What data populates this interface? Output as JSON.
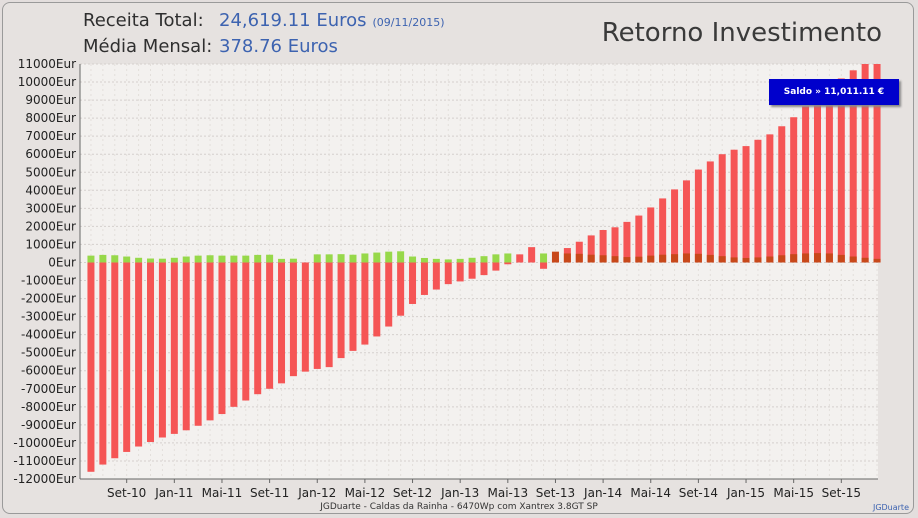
{
  "header": {
    "receita_label": "Receita Total:",
    "receita_value": "24,619.11 Euros",
    "receita_date": "(09/11/2015)",
    "media_label": "Média Mensal:",
    "media_value": "378.76 Euros",
    "title": "Retorno Investimento"
  },
  "saldo_label": "Saldo » 11,011.11 €",
  "footer": "JGDuarte  -  Caldas da Rainha  -  6470Wp com Xantrex 3.8GT SP",
  "credit": "JGDuarte",
  "colors": {
    "balance": "#f55555",
    "income": "#97d84a",
    "income_dark": "#c8481a"
  },
  "chart_data": {
    "type": "bar",
    "ylim": [
      -12000,
      11000
    ],
    "ytick_step": 1000,
    "yunit": "Eur",
    "x_start": "2010-06",
    "x_tick_labels": [
      {
        "label": "Set-10",
        "index": 3
      },
      {
        "label": "Jan-11",
        "index": 7
      },
      {
        "label": "Mai-11",
        "index": 11
      },
      {
        "label": "Set-11",
        "index": 15
      },
      {
        "label": "Jan-12",
        "index": 19
      },
      {
        "label": "Mai-12",
        "index": 23
      },
      {
        "label": "Set-12",
        "index": 27
      },
      {
        "label": "Jan-13",
        "index": 31
      },
      {
        "label": "Mai-13",
        "index": 35
      },
      {
        "label": "Set-13",
        "index": 39
      },
      {
        "label": "Jan-14",
        "index": 43
      },
      {
        "label": "Mai-14",
        "index": 47
      },
      {
        "label": "Set-14",
        "index": 51
      },
      {
        "label": "Jan-15",
        "index": 55
      },
      {
        "label": "Mai-15",
        "index": 59
      },
      {
        "label": "Set-15",
        "index": 63
      }
    ],
    "series": [
      {
        "values": [
          -11600,
          -11200,
          -10850,
          -10500,
          -10200,
          -9950,
          -9700,
          -9500,
          -9300,
          -9050,
          -8750,
          -8400,
          -8000,
          -7650,
          -7300,
          -7000,
          -6700,
          -6300,
          -6050,
          -5900,
          -5800,
          -5300,
          -4900,
          -4550,
          -4100,
          -3550,
          -2950,
          -2300,
          -1800,
          -1500,
          -1200,
          -1050,
          -900,
          -700,
          -450,
          -100,
          450,
          850,
          -350,
          200,
          800,
          1150,
          1500,
          1800,
          1950,
          2250,
          2600,
          3050,
          3550,
          4050,
          4550,
          5150,
          5600,
          6000,
          6250,
          6450,
          6800,
          7100,
          7550,
          8050,
          8650,
          9200,
          9700,
          10200,
          10650,
          11000,
          11000
        ]
      },
      {
        "values": [
          380,
          420,
          400,
          330,
          260,
          220,
          210,
          260,
          330,
          380,
          400,
          380,
          380,
          380,
          420,
          430,
          200,
          210,
          0,
          450,
          450,
          460,
          430,
          500,
          550,
          600,
          620,
          330,
          250,
          200,
          170,
          200,
          260,
          350,
          450,
          500,
          0,
          0,
          500,
          600,
          500,
          480,
          430,
          400,
          350,
          300,
          320,
          380,
          430,
          460,
          500,
          480,
          420,
          350,
          280,
          250,
          280,
          330,
          400,
          460,
          500,
          520,
          500,
          420,
          330,
          260,
          200
        ]
      }
    ]
  }
}
